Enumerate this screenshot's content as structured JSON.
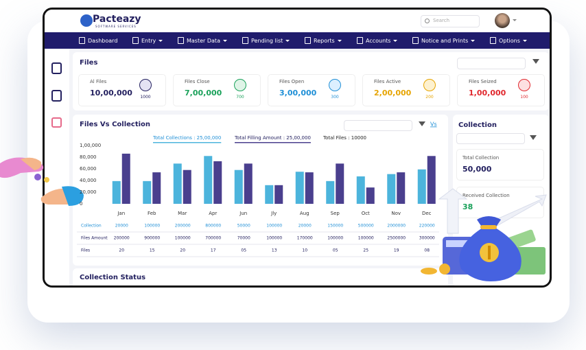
{
  "header": {
    "logo": "Pacteazy",
    "tagline": "SOFTWARE SERVICES",
    "search_placeholder": "Search"
  },
  "nav": [
    "Dashboard",
    "Entry",
    "Master Data",
    "Pending list",
    "Reports",
    "Accounts",
    "Notice and Prints",
    "Options"
  ],
  "files": {
    "title": "Files",
    "cards": [
      {
        "label": "Al Files",
        "value": "10,00,000",
        "count": "1000",
        "color": "#23205f",
        "tint": "#e4e2f3"
      },
      {
        "label": "Files Close",
        "value": "7,00,000",
        "count": "700",
        "color": "#1aa15a",
        "tint": "#dff4e7"
      },
      {
        "label": "Files Open",
        "value": "3,00,000",
        "count": "300",
        "color": "#1f8fd6",
        "tint": "#dcefff"
      },
      {
        "label": "Files Active",
        "value": "2,00,000",
        "count": "200",
        "color": "#e6a400",
        "tint": "#fdf1cf"
      },
      {
        "label": "Files Seized",
        "value": "1,00,000",
        "count": "100",
        "color": "#e0282e",
        "tint": "#fde0e1"
      }
    ]
  },
  "chart_data": {
    "type": "bar",
    "title": "Files Vs Collection",
    "link": "Vs",
    "note": "Total Files : 10000",
    "categories": [
      "Jan",
      "Feb",
      "Mar",
      "Apr",
      "Jun",
      "Jly",
      "Aug",
      "Sep",
      "Oct",
      "Nov",
      "Dec"
    ],
    "series": [
      {
        "name": "Total Collections : 25,00,000",
        "color": "#4cb4dc",
        "values": [
          39000,
          39000,
          69000,
          82000,
          58000,
          32000,
          55000,
          39000,
          47000,
          51000,
          59000
        ]
      },
      {
        "name": "Total Filling Amount : 25,00,000",
        "color": "#4a3f8e",
        "values": [
          86000,
          54000,
          58000,
          73000,
          69000,
          32000,
          54000,
          69000,
          28000,
          54000,
          82000
        ]
      }
    ],
    "ylim": [
      0,
      100000
    ],
    "yticks": [
      0,
      {
        "value": 20000,
        "label": "20,000"
      },
      {
        "value": 40000,
        "label": "40,000"
      },
      {
        "value": 60000,
        "label": "60,000"
      },
      {
        "value": 80000,
        "label": "80,000"
      },
      {
        "value": 100000,
        "label": "1,00,000"
      }
    ],
    "grid": false
  },
  "table": {
    "rows": [
      {
        "label": "Collection",
        "cells": [
          "20000",
          "100000",
          "200000",
          "800000",
          "50000",
          "100000",
          "20000",
          "150000",
          "500000",
          "2000000",
          "220000"
        ]
      },
      {
        "label": "Files Amount",
        "cells": [
          "200000",
          "900000",
          "100000",
          "700000",
          "70000",
          "100000",
          "170000",
          "100000",
          "100000",
          "2500000",
          "300000"
        ]
      },
      {
        "label": "Files",
        "cells": [
          "20",
          "15",
          "20",
          "17",
          "05",
          "13",
          "10",
          "05",
          "25",
          "19",
          "08"
        ]
      }
    ]
  },
  "collection": {
    "title": "Collection",
    "total_label": "Total Collection",
    "total_value": "50,000",
    "received_label": "Received Collection",
    "received_value": "38"
  },
  "collection_status": {
    "title": "Collection Status"
  }
}
